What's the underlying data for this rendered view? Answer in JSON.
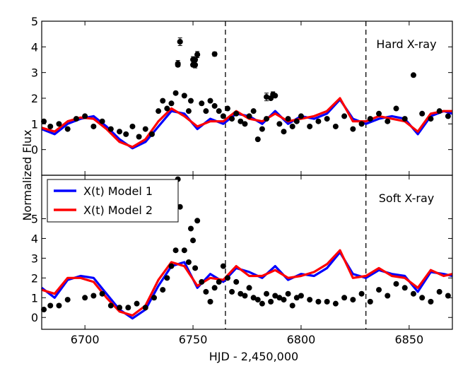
{
  "chart_data": [
    {
      "type": "scatter",
      "panel": "top",
      "annotation": "Hard X-ray",
      "xlim": [
        6680,
        6870
      ],
      "ylim": [
        -1,
        5
      ],
      "yticks": [
        0,
        1,
        2,
        3,
        4,
        5
      ],
      "vlines": [
        6765,
        6830
      ],
      "series": [
        {
          "name": "X(t) Model 1",
          "color": "#0000ff",
          "x": [
            6680,
            6686,
            6692,
            6698,
            6704,
            6710,
            6716,
            6722,
            6728,
            6734,
            6740,
            6746,
            6752,
            6758,
            6764,
            6770,
            6776,
            6782,
            6788,
            6794,
            6800,
            6806,
            6812,
            6818,
            6824,
            6830,
            6836,
            6842,
            6848,
            6854,
            6860,
            6866,
            6870
          ],
          "y": [
            0.8,
            0.6,
            1.0,
            1.2,
            1.3,
            0.9,
            0.4,
            0.05,
            0.3,
            0.9,
            1.5,
            1.4,
            0.8,
            1.2,
            1.0,
            1.4,
            1.3,
            1.0,
            1.5,
            1.0,
            1.3,
            1.2,
            1.4,
            1.95,
            1.2,
            1.0,
            1.2,
            1.3,
            1.2,
            0.6,
            1.3,
            1.5,
            1.4
          ]
        },
        {
          "name": "X(t) Model 2",
          "color": "#ff0000",
          "x": [
            6680,
            6686,
            6692,
            6698,
            6704,
            6710,
            6716,
            6722,
            6728,
            6734,
            6740,
            6746,
            6752,
            6758,
            6764,
            6770,
            6776,
            6782,
            6788,
            6794,
            6800,
            6806,
            6812,
            6818,
            6824,
            6830,
            6836,
            6842,
            6848,
            6854,
            6860,
            6866,
            6870
          ],
          "y": [
            0.85,
            0.7,
            1.1,
            1.25,
            1.2,
            0.8,
            0.3,
            0.1,
            0.4,
            1.1,
            1.6,
            1.3,
            0.9,
            1.1,
            1.1,
            1.5,
            1.2,
            1.1,
            1.4,
            1.1,
            1.2,
            1.3,
            1.5,
            2.0,
            1.1,
            1.1,
            1.3,
            1.2,
            1.1,
            0.7,
            1.4,
            1.5,
            1.5
          ]
        }
      ],
      "points": {
        "x": [
          6681,
          6684,
          6688,
          6692,
          6696,
          6700,
          6704,
          6708,
          6712,
          6716,
          6719,
          6722,
          6725,
          6728,
          6731,
          6734,
          6736,
          6738,
          6740,
          6742,
          6743,
          6744,
          6746,
          6748,
          6749,
          6750,
          6751,
          6752,
          6754,
          6756,
          6758,
          6760,
          6762,
          6764,
          6766,
          6768,
          6770,
          6772,
          6774,
          6776,
          6778,
          6780,
          6782,
          6784,
          6786,
          6788,
          6790,
          6792,
          6794,
          6796,
          6798,
          6800,
          6804,
          6808,
          6812,
          6816,
          6820,
          6824,
          6828,
          6832,
          6836,
          6840,
          6844,
          6848,
          6852,
          6856,
          6860,
          6864,
          6868
        ],
        "y": [
          1.1,
          0.9,
          1.0,
          0.8,
          1.2,
          1.3,
          0.9,
          1.1,
          0.8,
          0.7,
          0.6,
          0.9,
          0.5,
          0.8,
          0.6,
          1.5,
          1.9,
          1.6,
          1.8,
          2.2,
          3.3,
          4.2,
          2.1,
          1.5,
          1.9,
          3.3,
          3.5,
          3.7,
          1.8,
          1.5,
          1.9,
          1.7,
          1.5,
          1.3,
          1.6,
          1.2,
          1.4,
          1.1,
          1.0,
          1.3,
          1.5,
          0.4,
          0.8,
          1.2,
          2.0,
          2.1,
          1.0,
          0.7,
          1.2,
          0.9,
          1.1,
          1.3,
          0.9,
          1.1,
          1.2,
          0.9,
          1.3,
          0.8,
          1.0,
          1.2,
          1.4,
          1.1,
          1.6,
          1.2,
          2.9,
          1.4,
          1.2,
          1.5,
          1.3
        ]
      },
      "errorbar_points": {
        "x": [
          6744,
          6743,
          6750,
          6751,
          6752,
          6760,
          6784,
          6787
        ],
        "y": [
          4.2,
          3.35,
          3.5,
          3.3,
          3.7,
          3.72,
          2.05,
          2.15
        ],
        "err": [
          0.15,
          0.12,
          0.12,
          0.12,
          0.12,
          0.08,
          0.15,
          0.1
        ]
      }
    },
    {
      "type": "scatter",
      "panel": "bottom",
      "annotation": "Soft X-ray",
      "xlim": [
        6680,
        6870
      ],
      "ylim": [
        -0.6,
        7.2
      ],
      "yticks": [
        0,
        1,
        2,
        3,
        4,
        5
      ],
      "xticks": [
        6700,
        6750,
        6800,
        6850
      ],
      "xlabel": "HJD - 2,450,000",
      "ylabel": "Normalized Flux",
      "vlines": [
        6765,
        6830
      ],
      "legend_location": "top-left",
      "legend": [
        "X(t) Model 1",
        "X(t) Model 2"
      ],
      "series": [
        {
          "name": "X(t) Model 1",
          "color": "#0000ff",
          "x": [
            6680,
            6686,
            6692,
            6698,
            6704,
            6710,
            6716,
            6722,
            6728,
            6734,
            6740,
            6746,
            6752,
            6758,
            6764,
            6770,
            6776,
            6782,
            6788,
            6794,
            6800,
            6806,
            6812,
            6818,
            6824,
            6830,
            6836,
            6842,
            6848,
            6854,
            6860,
            6866,
            6870
          ],
          "y": [
            1.5,
            1.0,
            1.9,
            2.1,
            2.0,
            1.2,
            0.4,
            -0.05,
            0.4,
            1.6,
            2.6,
            2.8,
            1.5,
            2.2,
            1.8,
            2.5,
            2.3,
            2.0,
            2.6,
            1.9,
            2.2,
            2.1,
            2.5,
            3.3,
            2.2,
            2.0,
            2.4,
            2.2,
            2.1,
            1.3,
            2.3,
            2.2,
            2.1
          ]
        },
        {
          "name": "X(t) Model 2",
          "color": "#ff0000",
          "x": [
            6680,
            6686,
            6692,
            6698,
            6704,
            6710,
            6716,
            6722,
            6728,
            6734,
            6740,
            6746,
            6752,
            6758,
            6764,
            6770,
            6776,
            6782,
            6788,
            6794,
            6800,
            6806,
            6812,
            6818,
            6824,
            6830,
            6836,
            6842,
            6848,
            6854,
            6860,
            6866,
            6870
          ],
          "y": [
            1.4,
            1.2,
            2.0,
            2.0,
            1.8,
            1.0,
            0.3,
            0.1,
            0.6,
            1.9,
            2.8,
            2.6,
            1.6,
            2.0,
            1.9,
            2.6,
            2.1,
            2.1,
            2.4,
            2.0,
            2.1,
            2.3,
            2.7,
            3.4,
            2.0,
            2.1,
            2.5,
            2.1,
            2.0,
            1.5,
            2.4,
            2.1,
            2.2
          ]
        }
      ],
      "points": {
        "x": [
          6681,
          6684,
          6688,
          6692,
          6700,
          6704,
          6708,
          6712,
          6716,
          6720,
          6724,
          6728,
          6732,
          6736,
          6738,
          6740,
          6742,
          6743,
          6744,
          6746,
          6748,
          6749,
          6750,
          6751,
          6752,
          6754,
          6756,
          6758,
          6760,
          6762,
          6764,
          6766,
          6768,
          6770,
          6772,
          6774,
          6776,
          6778,
          6780,
          6782,
          6784,
          6786,
          6788,
          6790,
          6792,
          6794,
          6796,
          6798,
          6800,
          6804,
          6808,
          6812,
          6816,
          6820,
          6824,
          6828,
          6832,
          6836,
          6840,
          6844,
          6848,
          6852,
          6856,
          6860,
          6864,
          6868
        ],
        "y": [
          0.4,
          0.6,
          0.6,
          0.9,
          1.0,
          1.1,
          1.2,
          0.6,
          0.5,
          0.5,
          0.7,
          0.5,
          1.0,
          1.4,
          2.0,
          2.6,
          3.4,
          7.0,
          5.6,
          3.4,
          2.8,
          4.5,
          3.9,
          2.5,
          4.9,
          1.8,
          1.3,
          0.8,
          1.5,
          1.8,
          2.6,
          2.0,
          1.3,
          1.8,
          1.2,
          1.1,
          1.5,
          1.0,
          0.9,
          0.7,
          1.2,
          0.8,
          1.1,
          1.0,
          0.9,
          1.2,
          0.6,
          1.0,
          1.1,
          0.9,
          0.8,
          0.8,
          0.7,
          1.0,
          0.9,
          1.2,
          0.8,
          1.4,
          1.1,
          1.7,
          1.5,
          1.2,
          1.0,
          0.8,
          1.3,
          1.1
        ]
      }
    }
  ]
}
